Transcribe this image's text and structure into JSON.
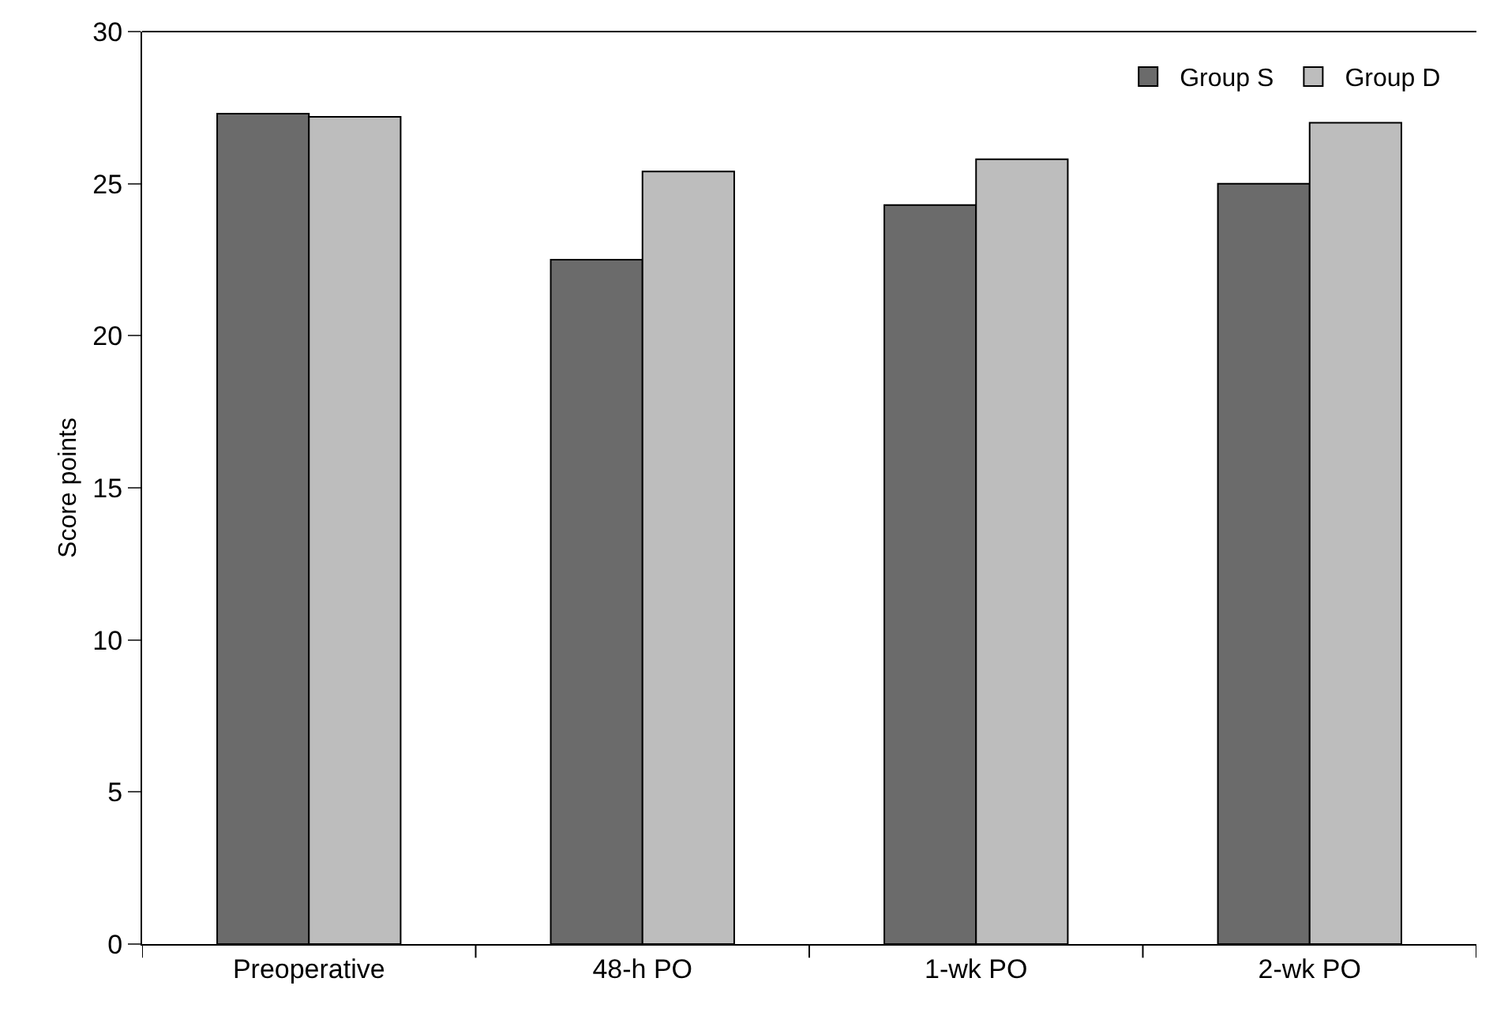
{
  "chart_data": {
    "type": "bar",
    "ylabel": "Score points",
    "categories": [
      "Preoperative",
      "48-h PO",
      "1-wk PO",
      "2-wk PO"
    ],
    "series": [
      {
        "name": "Group S",
        "color": "#6b6b6b",
        "values": [
          27.3,
          22.5,
          24.3,
          25.0
        ]
      },
      {
        "name": "Group D",
        "color": "#bdbdbd",
        "values": [
          27.2,
          25.4,
          25.8,
          27.0
        ]
      }
    ],
    "ylim": [
      0,
      30
    ],
    "yticks": [
      0,
      5,
      10,
      15,
      20,
      25,
      30
    ],
    "grid": false,
    "legend": "top right"
  }
}
